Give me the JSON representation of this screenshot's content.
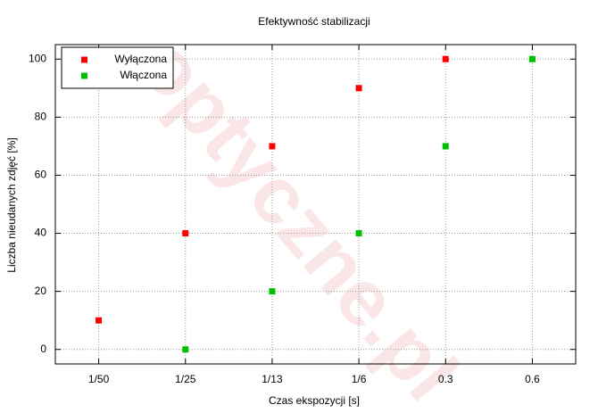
{
  "chart_data": {
    "type": "scatter",
    "title": "Efektywność stabilizacji",
    "x_label": "Czas ekspozycji [s]",
    "y_label": "Liczba nieudanych zdjęć [%]",
    "watermark": "optyczne.pl",
    "categories": [
      "1/50",
      "1/25",
      "1/13",
      "1/6",
      "0.3",
      "0.6"
    ],
    "series": [
      {
        "name": "Wyłączona",
        "color": "#ff0000",
        "values": [
          10,
          40,
          70,
          90,
          100,
          null
        ]
      },
      {
        "name": "Włączona",
        "color": "#00c000",
        "values": [
          null,
          0,
          20,
          40,
          70,
          100
        ]
      }
    ],
    "ylim": [
      -5,
      105
    ],
    "yticks": [
      0,
      20,
      40,
      60,
      80,
      100
    ],
    "grid": true,
    "legend": "top-left"
  }
}
